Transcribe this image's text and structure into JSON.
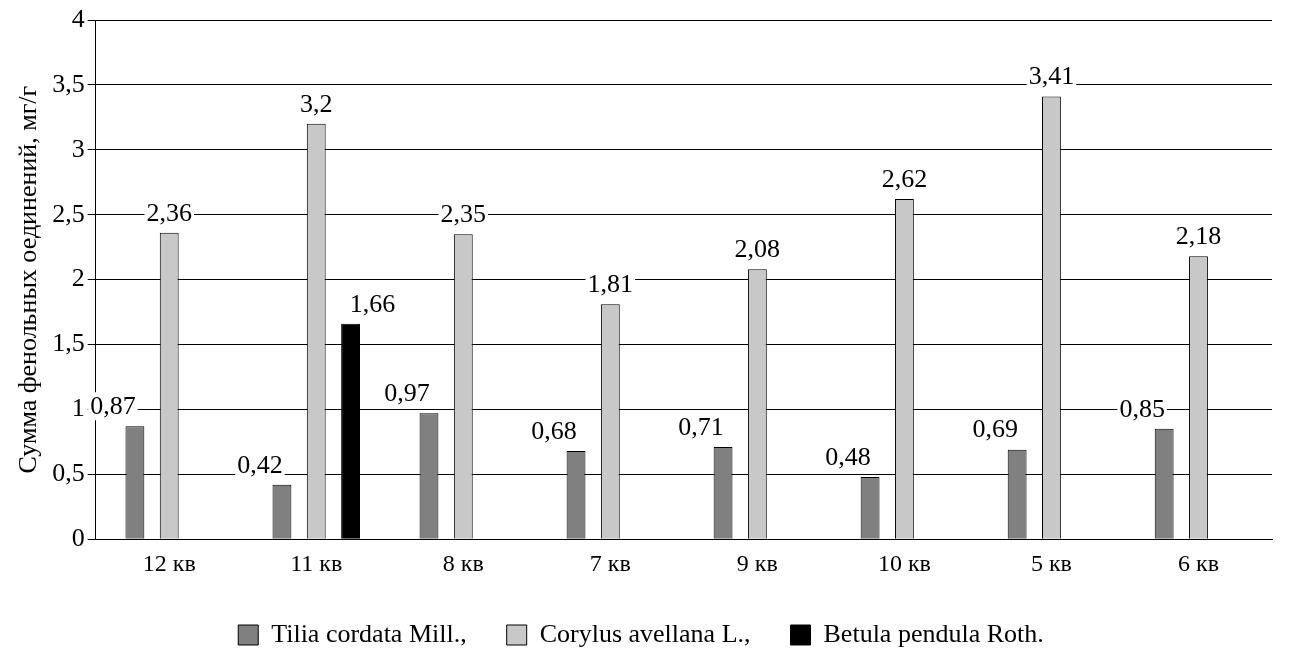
{
  "chart_data": {
    "type": "bar",
    "ylabel": "Сумма фенольных оединений, мг/г",
    "categories": [
      "12 кв",
      "11 кв",
      "8 кв",
      "7 кв",
      "9 кв",
      "10 кв",
      "5 кв",
      "6 кв"
    ],
    "series": [
      {
        "name": "Tilia cordata Mill.,",
        "color": "#808080",
        "values": [
          0.87,
          0.42,
          0.97,
          0.68,
          0.71,
          0.48,
          0.69,
          0.85
        ],
        "value_labels": [
          "0,87",
          "0,42",
          "0,97",
          "0,68",
          "0,71",
          "0,48",
          "0,69",
          "0,85"
        ]
      },
      {
        "name": "Corylus avellana L.,",
        "color": "#c8c8c8",
        "values": [
          2.36,
          3.2,
          2.35,
          1.81,
          2.08,
          2.62,
          3.41,
          2.18
        ],
        "value_labels": [
          "2,36",
          "3,2",
          "2,35",
          "1,81",
          "2,08",
          "2,62",
          "3,41",
          "2,18"
        ]
      },
      {
        "name": "Betula pendula Roth.",
        "color": "#000000",
        "values": [
          null,
          1.66,
          null,
          null,
          null,
          null,
          null,
          null
        ],
        "value_labels": [
          null,
          "1,66",
          null,
          null,
          null,
          null,
          null,
          null
        ]
      }
    ],
    "ylim": [
      0,
      4
    ],
    "yticks": [
      0,
      {
        "value": 0.5,
        "label": "0,5"
      },
      1,
      {
        "value": 1.5,
        "label": "1,5"
      },
      2,
      {
        "value": 2.5,
        "label": "2,5"
      },
      3,
      {
        "value": 3.5,
        "label": "3,5"
      },
      4
    ],
    "grid": "y",
    "legend": "bottom"
  }
}
